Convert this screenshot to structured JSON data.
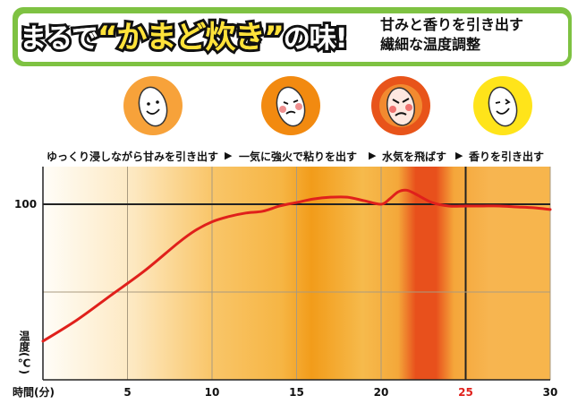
{
  "header": {
    "headline_a": "まるで",
    "headline_b": "“かまど炊き”",
    "headline_c": "の味!",
    "subtitle_line1": "甘みと香りを引き出す",
    "subtitle_line2": "繊細な温度調整"
  },
  "stages": [
    {
      "label": "ゆっくり浸しながら甘みを引き出す",
      "face_color": "#f7a23a",
      "icon": "happy-rice-icon"
    },
    {
      "label": "一気に強火で粘りを出す",
      "face_color": "#f28a10",
      "icon": "hot-rice-icon"
    },
    {
      "label": "水気を飛ばす",
      "face_color": "#e8541a",
      "icon": "angry-rice-icon"
    },
    {
      "label": "香りを引き出す",
      "face_color": "#ffe41a",
      "icon": "winking-rice-icon"
    }
  ],
  "stage_arrow": "▶",
  "colors": {
    "curve": "#e0201b",
    "grid": "#9a8a70",
    "highlight_tick": "#e0201b",
    "banner": "#7ec242"
  },
  "chart_data": {
    "type": "line",
    "xlabel": "時間(分)",
    "ylabel": "温度(℃)",
    "x_ticks": [
      5,
      10,
      15,
      20,
      25,
      30
    ],
    "highlight_tick": 25,
    "y_ticks": [
      100
    ],
    "xlim": [
      0,
      30
    ],
    "ylim": [
      0,
      125
    ],
    "series": [
      {
        "x": [
          0,
          2,
          4,
          6,
          8,
          9,
          10,
          11,
          12,
          13,
          14,
          15,
          16,
          17,
          18,
          19,
          20,
          20.5,
          21,
          21.5,
          22,
          23,
          24,
          25,
          26,
          27,
          28,
          29,
          30
        ],
        "y": [
          22,
          34,
          48,
          62,
          78,
          85,
          90,
          93,
          95,
          96,
          99,
          101,
          103,
          104,
          104,
          102,
          100,
          103,
          107,
          108,
          106,
          101,
          99,
          99,
          99,
          99,
          98.5,
          98,
          97
        ]
      }
    ]
  }
}
